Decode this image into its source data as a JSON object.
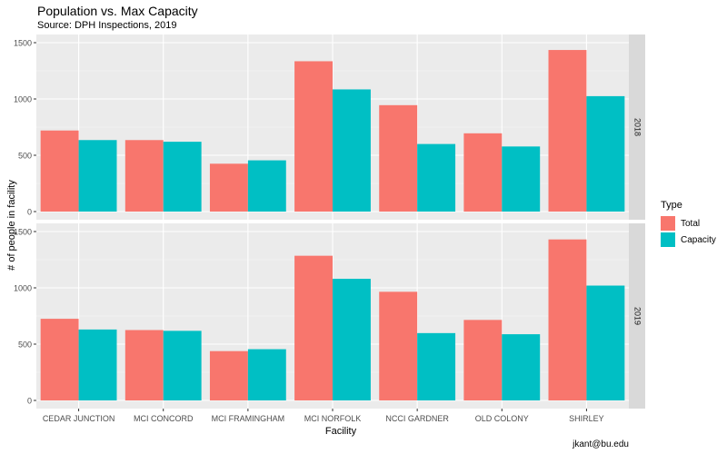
{
  "chart_data": {
    "type": "bar",
    "title": "Population vs. Max Capacity",
    "subtitle": "Source: DPH Inspections, 2019",
    "caption": "jkant@bu.edu",
    "xlabel": "Facility",
    "ylabel": "# of people in facility",
    "legend_title": "Type",
    "legend_position": "right",
    "grid": true,
    "ylim": [
      0,
      1500
    ],
    "yticks": [
      0,
      500,
      1000,
      1500
    ],
    "categories": [
      "CEDAR JUNCTION",
      "MCI CONCORD",
      "MCI FRAMINGHAM",
      "MCI NORFOLK",
      "NCCI GARDNER",
      "OLD COLONY",
      "SHIRLEY"
    ],
    "panels": [
      {
        "label": "2018",
        "series": [
          {
            "name": "Total",
            "color": "#F8766D",
            "values": [
              720,
              635,
              425,
              1335,
              945,
              695,
              1435
            ]
          },
          {
            "name": "Capacity",
            "color": "#00BFC4",
            "values": [
              635,
              620,
              455,
              1085,
              600,
              578,
              1025
            ]
          }
        ]
      },
      {
        "label": "2019",
        "series": [
          {
            "name": "Total",
            "color": "#F8766D",
            "values": [
              725,
              625,
              438,
              1285,
              965,
              715,
              1430
            ]
          },
          {
            "name": "Capacity",
            "color": "#00BFC4",
            "values": [
              630,
              618,
              455,
              1080,
              598,
              588,
              1020
            ]
          }
        ]
      }
    ]
  }
}
